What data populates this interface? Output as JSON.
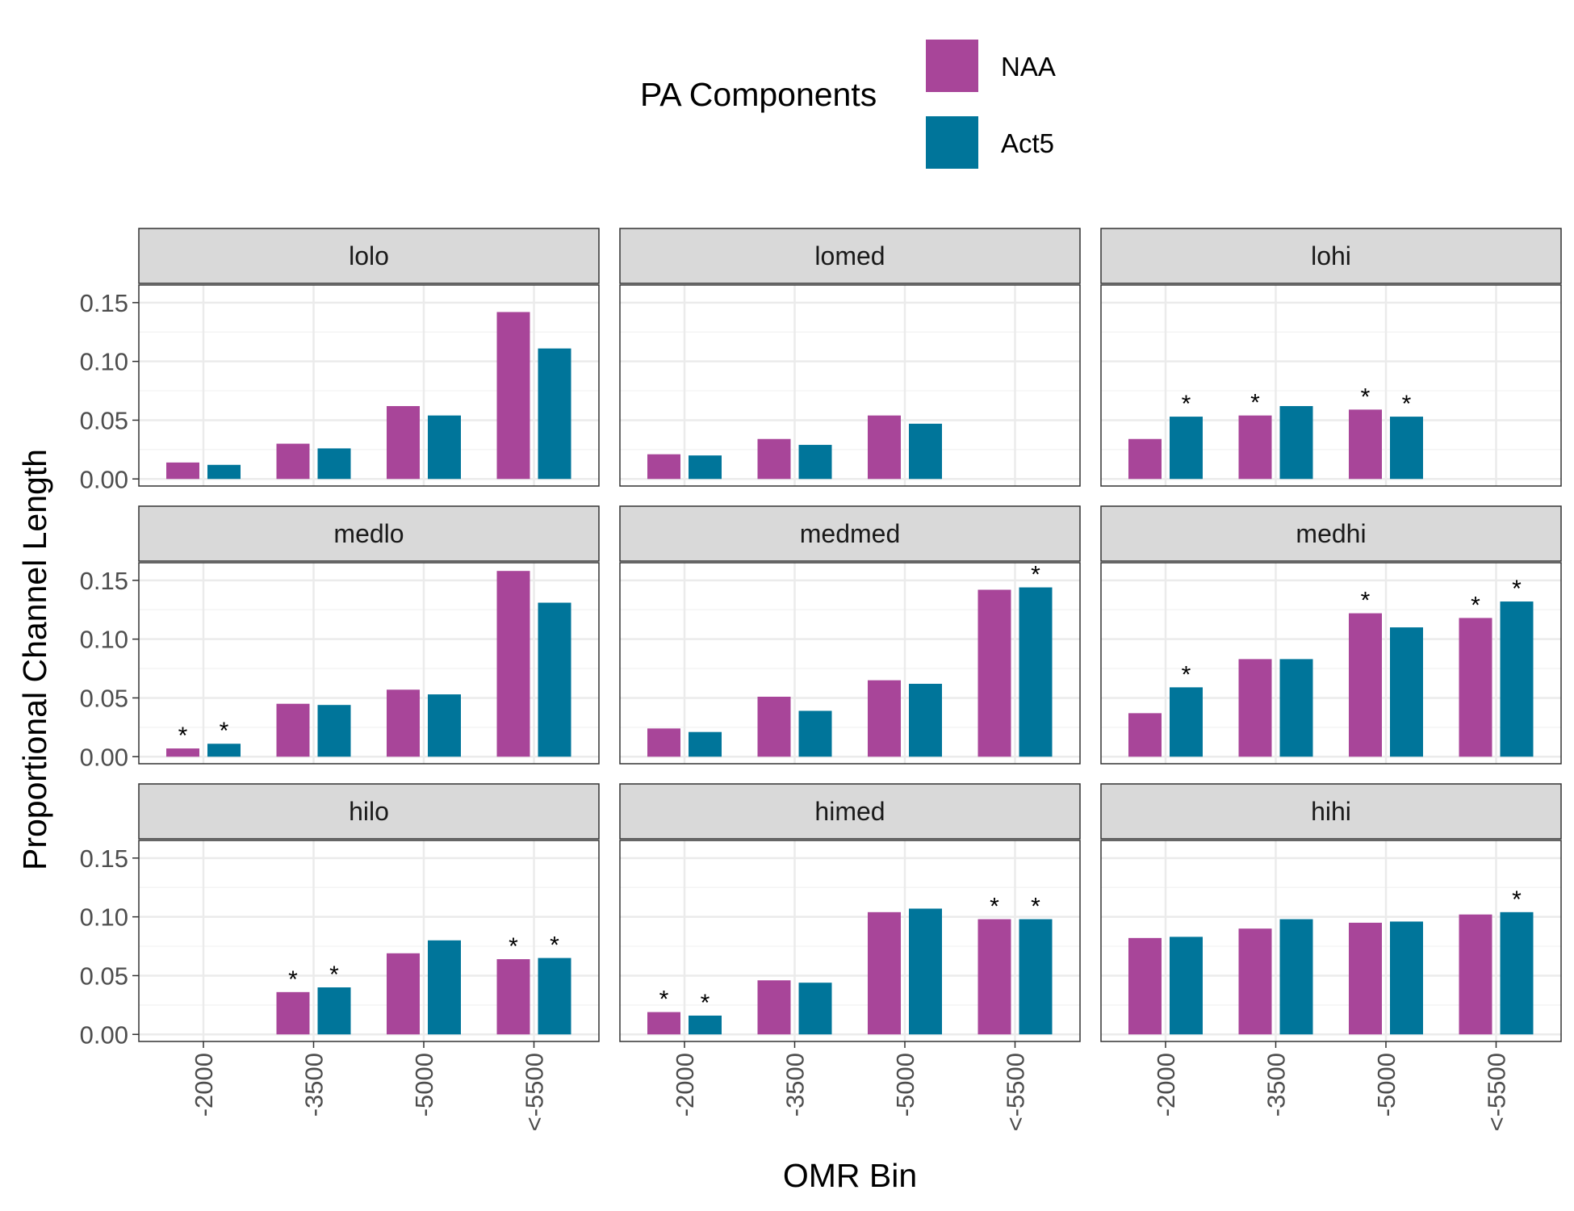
{
  "chart_data": {
    "type": "bar",
    "xlabel": "OMR Bin",
    "ylabel": "Proportional Channel Length",
    "ylim": [
      -0.006,
      0.165
    ],
    "yticks": [
      0.0,
      0.05,
      0.1,
      0.15
    ],
    "ytick_labels": [
      "0.00",
      "0.05",
      "0.10",
      "0.15"
    ],
    "categories": [
      "-2000",
      "-3500",
      "-5000",
      "<-5500"
    ],
    "grid": true,
    "legend": {
      "title": "PA Components",
      "position": "top",
      "entries": [
        {
          "label": "NAA",
          "color": "#A84599"
        },
        {
          "label": "Act5",
          "color": "#00759A"
        }
      ]
    },
    "significance_marker": "*",
    "panels": [
      {
        "name": "lolo",
        "series": [
          {
            "name": "NAA",
            "values": [
              0.014,
              0.03,
              0.062,
              0.142
            ],
            "sig": [
              false,
              false,
              false,
              false
            ]
          },
          {
            "name": "Act5",
            "values": [
              0.012,
              0.026,
              0.054,
              0.111
            ],
            "sig": [
              false,
              false,
              false,
              false
            ]
          }
        ]
      },
      {
        "name": "lomed",
        "series": [
          {
            "name": "NAA",
            "values": [
              0.021,
              0.034,
              0.054,
              null
            ],
            "sig": [
              false,
              false,
              false,
              false
            ]
          },
          {
            "name": "Act5",
            "values": [
              0.02,
              0.029,
              0.047,
              null
            ],
            "sig": [
              false,
              false,
              false,
              false
            ]
          }
        ]
      },
      {
        "name": "lohi",
        "series": [
          {
            "name": "NAA",
            "values": [
              0.034,
              0.054,
              0.059,
              null
            ],
            "sig": [
              false,
              true,
              true,
              false
            ]
          },
          {
            "name": "Act5",
            "values": [
              0.053,
              0.062,
              0.053,
              null
            ],
            "sig": [
              true,
              false,
              true,
              false
            ]
          }
        ]
      },
      {
        "name": "medlo",
        "series": [
          {
            "name": "NAA",
            "values": [
              0.007,
              0.045,
              0.057,
              0.158
            ],
            "sig": [
              true,
              false,
              false,
              false
            ]
          },
          {
            "name": "Act5",
            "values": [
              0.011,
              0.044,
              0.053,
              0.131
            ],
            "sig": [
              true,
              false,
              false,
              false
            ]
          }
        ]
      },
      {
        "name": "medmed",
        "series": [
          {
            "name": "NAA",
            "values": [
              0.024,
              0.051,
              0.065,
              0.142
            ],
            "sig": [
              false,
              false,
              false,
              false
            ]
          },
          {
            "name": "Act5",
            "values": [
              0.021,
              0.039,
              0.062,
              0.144
            ],
            "sig": [
              false,
              false,
              false,
              true
            ]
          }
        ]
      },
      {
        "name": "medhi",
        "series": [
          {
            "name": "NAA",
            "values": [
              0.037,
              0.083,
              0.122,
              0.118
            ],
            "sig": [
              false,
              false,
              true,
              true
            ]
          },
          {
            "name": "Act5",
            "values": [
              0.059,
              0.083,
              0.11,
              0.132
            ],
            "sig": [
              true,
              false,
              false,
              true
            ]
          }
        ]
      },
      {
        "name": "hilo",
        "series": [
          {
            "name": "NAA",
            "values": [
              null,
              0.036,
              0.069,
              0.064
            ],
            "sig": [
              false,
              true,
              false,
              true
            ]
          },
          {
            "name": "Act5",
            "values": [
              null,
              0.04,
              0.08,
              0.065
            ],
            "sig": [
              false,
              true,
              false,
              true
            ]
          }
        ]
      },
      {
        "name": "himed",
        "series": [
          {
            "name": "NAA",
            "values": [
              0.019,
              0.046,
              0.104,
              0.098
            ],
            "sig": [
              true,
              false,
              false,
              true
            ]
          },
          {
            "name": "Act5",
            "values": [
              0.016,
              0.044,
              0.107,
              0.098
            ],
            "sig": [
              true,
              false,
              false,
              true
            ]
          }
        ]
      },
      {
        "name": "hihi",
        "series": [
          {
            "name": "NAA",
            "values": [
              0.082,
              0.09,
              0.095,
              0.102
            ],
            "sig": [
              false,
              false,
              false,
              false
            ]
          },
          {
            "name": "Act5",
            "values": [
              0.083,
              0.098,
              0.096,
              0.104
            ],
            "sig": [
              false,
              false,
              false,
              true
            ]
          }
        ]
      }
    ]
  }
}
